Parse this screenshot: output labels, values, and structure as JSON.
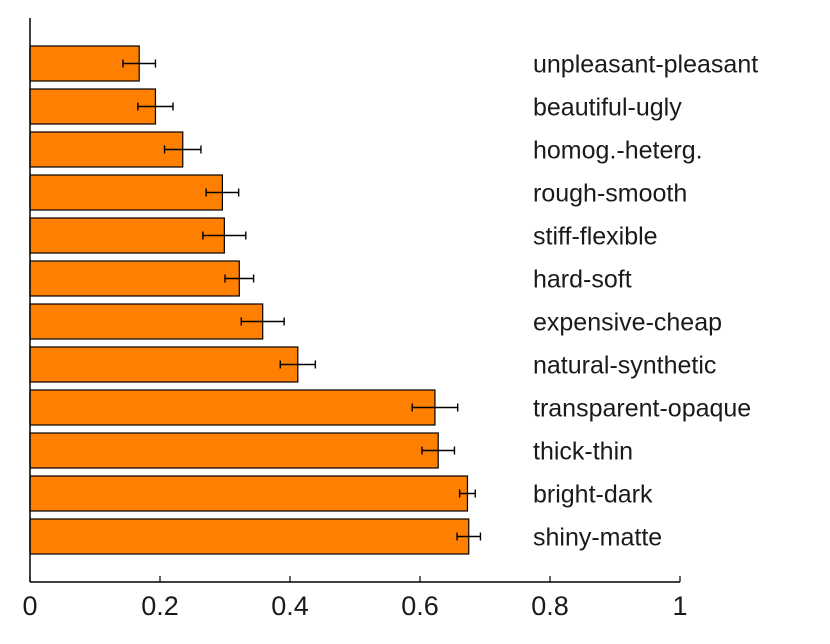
{
  "chart_data": {
    "type": "bar",
    "orientation": "horizontal",
    "title": "",
    "xlabel": "",
    "ylabel": "",
    "xlim": [
      0,
      1
    ],
    "grid": false,
    "bar_color": "#ff7f00",
    "categories": [
      "unpleasant-pleasant",
      "beautiful-ugly",
      "homog.-heterg.",
      "rough-smooth",
      "stiff-flexible",
      "hard-soft",
      "expensive-cheap",
      "natural-synthetic",
      "transparent-opaque",
      "thick-thin",
      "bright-dark",
      "shiny-matte"
    ],
    "values": [
      0.168,
      0.193,
      0.235,
      0.296,
      0.299,
      0.322,
      0.358,
      0.412,
      0.623,
      0.628,
      0.673,
      0.675
    ],
    "errors": [
      0.025,
      0.027,
      0.028,
      0.025,
      0.033,
      0.022,
      0.033,
      0.027,
      0.035,
      0.025,
      0.012,
      0.018
    ],
    "x_ticks": [
      "0",
      "0.2",
      "0.4",
      "0.6",
      "0.8",
      "1"
    ],
    "x_tick_values": [
      0,
      0.2,
      0.4,
      0.6,
      0.8,
      1
    ]
  }
}
